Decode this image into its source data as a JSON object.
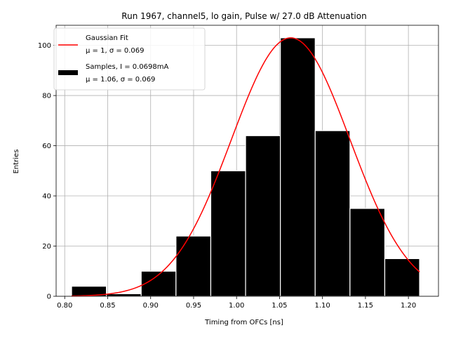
{
  "chart_data": {
    "type": "bar",
    "title": "Run 1967, channel5, lo gain, Pulse w/ 27.0 dB Attenuation",
    "xlabel": "Timing from OFCs [ns]",
    "ylabel": "Entries",
    "xlim": [
      0.79,
      1.235
    ],
    "ylim": [
      0,
      108
    ],
    "grid": true,
    "legend_position": "top-left",
    "xticks": [
      0.8,
      0.85,
      0.9,
      0.95,
      1.0,
      1.05,
      1.1,
      1.15,
      1.2
    ],
    "xtick_labels": [
      "0.80",
      "0.85",
      "0.90",
      "0.95",
      "1.00",
      "1.05",
      "1.10",
      "1.15",
      "1.20"
    ],
    "yticks": [
      0,
      20,
      40,
      60,
      80,
      100
    ],
    "ytick_labels": [
      "0",
      "20",
      "40",
      "60",
      "80",
      "100"
    ],
    "histogram": {
      "name": "Samples, I = 0.0698mA",
      "stats_label": "μ = 1.06, σ = 0.069",
      "bin_edges": [
        0.808,
        0.8485,
        0.889,
        0.9295,
        0.97,
        1.0105,
        1.051,
        1.0915,
        1.132,
        1.1725,
        1.213
      ],
      "counts": [
        4,
        1,
        10,
        24,
        50,
        64,
        103,
        66,
        35,
        15
      ],
      "color": "#000000",
      "edge_color": "#ffffff"
    },
    "fit": {
      "name": "Gaussian Fit",
      "stats_label": "μ = 1, σ = 0.069",
      "mu": 1.063,
      "sigma": 0.069,
      "amplitude": 103,
      "x_range": [
        0.808,
        1.213
      ],
      "color": "#ff0000"
    }
  }
}
